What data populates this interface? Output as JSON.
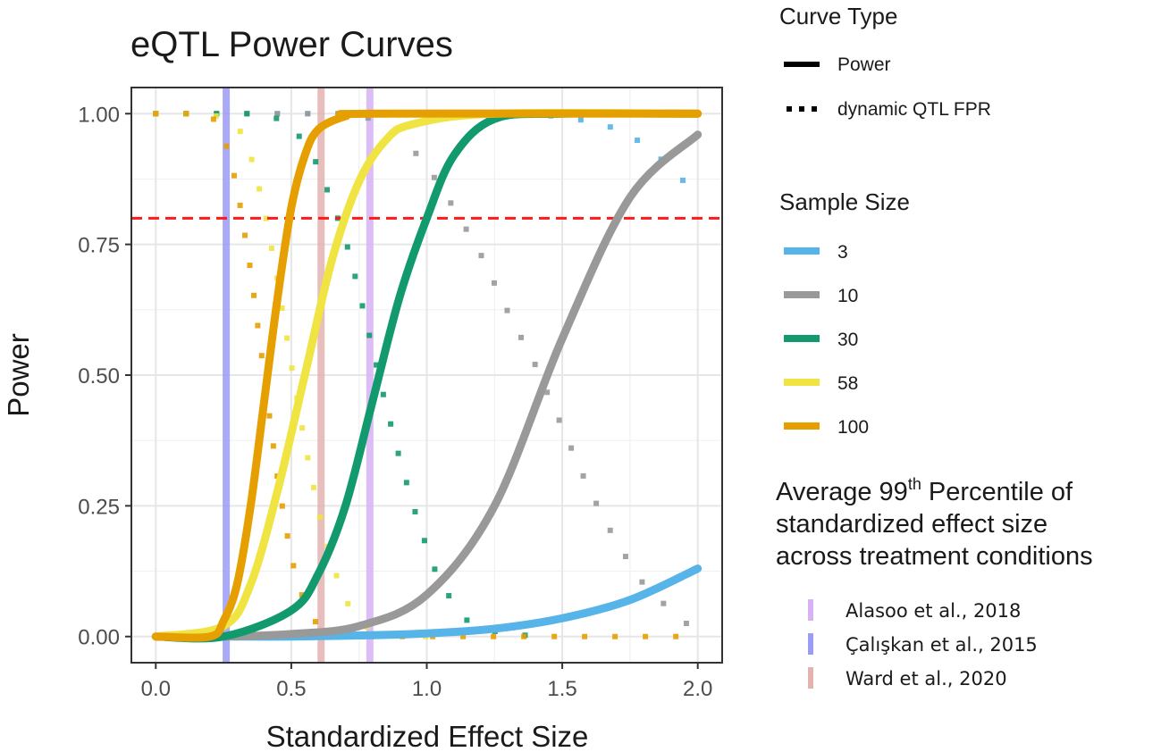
{
  "chart_data": {
    "type": "line",
    "title": "eQTL Power Curves",
    "xlabel": "Standardized Effect Size",
    "ylabel": "Power",
    "xlim": [
      -0.09,
      2.09
    ],
    "ylim": [
      -0.05,
      1.05
    ],
    "x_ticks": [
      "0.0",
      "0.5",
      "1.0",
      "1.5",
      "2.0"
    ],
    "x_tick_values": [
      0,
      0.5,
      1.0,
      1.5,
      2.0
    ],
    "y_ticks": [
      "0.00",
      "0.25",
      "0.50",
      "0.75",
      "1.00"
    ],
    "y_tick_values": [
      0,
      0.25,
      0.5,
      0.75,
      1.0
    ],
    "grid": true,
    "threshold_line": {
      "y": 0.8,
      "color": "#ff1a1a",
      "style": "dashed"
    },
    "legend_curve_type": {
      "title": "Curve Type",
      "items": [
        {
          "label": "Power",
          "style": "solid"
        },
        {
          "label": "dynamic QTL FPR",
          "style": "dotted"
        }
      ]
    },
    "legend_sample_size": {
      "title": "Sample Size",
      "items": [
        {
          "label": "3",
          "color": "#56B4E9"
        },
        {
          "label": "10",
          "color": "#999999"
        },
        {
          "label": "30",
          "color": "#129A6E"
        },
        {
          "label": "58",
          "color": "#F0E442"
        },
        {
          "label": "100",
          "color": "#E69F00"
        }
      ]
    },
    "series": [
      {
        "name": "3",
        "color": "#56B4E9",
        "type": "power",
        "x": [
          0,
          0.25,
          0.5,
          0.75,
          1.0,
          1.25,
          1.5,
          1.75,
          2.0
        ],
        "y": [
          0,
          0,
          0,
          0.002,
          0.006,
          0.015,
          0.035,
          0.07,
          0.13
        ]
      },
      {
        "name": "10",
        "color": "#999999",
        "type": "power",
        "x": [
          0,
          0.25,
          0.5,
          0.75,
          1.0,
          1.25,
          1.5,
          1.75,
          2.0
        ],
        "y": [
          0,
          0,
          0.005,
          0.02,
          0.08,
          0.25,
          0.57,
          0.84,
          0.96
        ]
      },
      {
        "name": "30",
        "color": "#129A6E",
        "type": "power",
        "x": [
          0,
          0.25,
          0.5,
          0.6,
          0.7,
          0.8,
          0.9,
          1.0,
          1.1,
          1.25,
          1.5,
          2.0
        ],
        "y": [
          0,
          0,
          0.05,
          0.12,
          0.25,
          0.45,
          0.65,
          0.8,
          0.92,
          0.99,
          1.0,
          1.0
        ]
      },
      {
        "name": "58",
        "color": "#F0E442",
        "type": "power",
        "x": [
          0,
          0.25,
          0.35,
          0.45,
          0.55,
          0.65,
          0.75,
          0.85,
          0.95,
          1.25,
          2.0
        ],
        "y": [
          0,
          0.02,
          0.1,
          0.28,
          0.5,
          0.72,
          0.87,
          0.95,
          0.98,
          1.0,
          1.0
        ]
      },
      {
        "name": "100",
        "color": "#E69F00",
        "type": "power",
        "x": [
          0,
          0.2,
          0.25,
          0.3,
          0.35,
          0.4,
          0.45,
          0.5,
          0.55,
          0.6,
          0.7,
          0.8,
          2.0
        ],
        "y": [
          0,
          0,
          0.03,
          0.1,
          0.25,
          0.45,
          0.65,
          0.82,
          0.92,
          0.97,
          0.995,
          1.0,
          1.0
        ]
      },
      {
        "name": "3",
        "color": "#56B4E9",
        "type": "dynamic QTL FPR",
        "x": [
          0,
          0.25,
          0.5,
          0.75,
          1.0,
          1.25,
          1.5,
          1.65,
          1.75,
          1.85,
          1.95
        ],
        "y": [
          1.0,
          1.0,
          1.0,
          1.0,
          1.0,
          1.0,
          0.995,
          0.98,
          0.96,
          0.92,
          0.87
        ]
      },
      {
        "name": "10",
        "color": "#999999",
        "type": "dynamic QTL FPR",
        "x": [
          0,
          0.25,
          0.5,
          0.7,
          0.8,
          0.9,
          1.0,
          1.1,
          1.2,
          1.3,
          1.4,
          1.5,
          1.6,
          1.7,
          1.8,
          1.9,
          1.97
        ],
        "y": [
          1.0,
          1.0,
          1.0,
          1.0,
          0.99,
          0.96,
          0.9,
          0.82,
          0.73,
          0.62,
          0.52,
          0.4,
          0.28,
          0.18,
          0.1,
          0.05,
          0.02
        ]
      },
      {
        "name": "30",
        "color": "#129A6E",
        "type": "dynamic QTL FPR",
        "x": [
          0,
          0.25,
          0.4,
          0.5,
          0.6,
          0.7,
          0.75,
          0.8,
          0.85,
          0.9,
          0.95,
          1.0,
          1.05,
          1.15,
          1.25,
          1.4
        ],
        "y": [
          1.0,
          1.0,
          1.0,
          0.98,
          0.9,
          0.76,
          0.66,
          0.55,
          0.44,
          0.34,
          0.25,
          0.17,
          0.1,
          0.03,
          0.01,
          0.0
        ]
      },
      {
        "name": "58",
        "color": "#F0E442",
        "type": "dynamic QTL FPR",
        "x": [
          0,
          0.2,
          0.3,
          0.35,
          0.4,
          0.45,
          0.5,
          0.55,
          0.6,
          0.65,
          0.7,
          0.75,
          0.8,
          0.9,
          1.0
        ],
        "y": [
          1.0,
          1.0,
          0.98,
          0.92,
          0.82,
          0.68,
          0.52,
          0.37,
          0.24,
          0.14,
          0.07,
          0.03,
          0.01,
          0.0,
          0.0
        ]
      },
      {
        "name": "100",
        "color": "#E69F00",
        "type": "dynamic QTL FPR",
        "x": [
          0,
          0.2,
          0.25,
          0.3,
          0.35,
          0.4,
          0.45,
          0.5,
          0.55,
          0.6,
          0.7,
          0.8,
          1.0,
          1.5,
          2.0
        ],
        "y": [
          1.0,
          1.0,
          0.96,
          0.86,
          0.7,
          0.5,
          0.3,
          0.15,
          0.06,
          0.02,
          0.0,
          0.0,
          0.0,
          0.0,
          0.0
        ]
      }
    ],
    "reference_lines": [
      {
        "label": "Alasoo et al., 2018",
        "x": 0.79,
        "color": "#D8B2F5"
      },
      {
        "label": "Çalışkan et al., 2015",
        "x": 0.26,
        "color": "#9C9CF7"
      },
      {
        "label": "Ward et al., 2020",
        "x": 0.61,
        "color": "#E3B3B0"
      }
    ],
    "reference_legend_title_parts": [
      "Average 99",
      "th",
      " Percentile of",
      "standardized effect size",
      "across treatment conditions"
    ]
  }
}
